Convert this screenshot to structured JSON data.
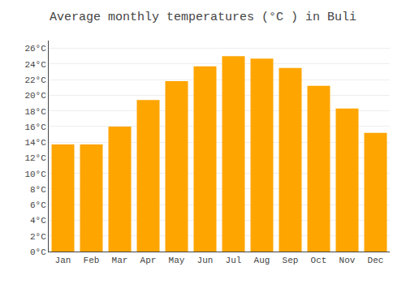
{
  "chart_data": {
    "type": "bar",
    "title": "Average monthly temperatures (°C ) in Buli",
    "categories": [
      "Jan",
      "Feb",
      "Mar",
      "Apr",
      "May",
      "Jun",
      "Jul",
      "Aug",
      "Sep",
      "Oct",
      "Nov",
      "Dec"
    ],
    "values": [
      13.7,
      13.7,
      16.0,
      19.4,
      21.8,
      23.7,
      25.0,
      24.7,
      23.5,
      21.2,
      18.3,
      15.2
    ],
    "color": "#FFA500",
    "ylim": [
      0,
      27
    ],
    "yticks": [
      {
        "value": 0,
        "label": "0°C"
      },
      {
        "value": 2,
        "label": "2°C"
      },
      {
        "value": 4,
        "label": "4°C"
      },
      {
        "value": 6,
        "label": "6°C"
      },
      {
        "value": 8,
        "label": "8°C"
      },
      {
        "value": 10,
        "label": "10°C"
      },
      {
        "value": 12,
        "label": "12°C"
      },
      {
        "value": 14,
        "label": "14°C"
      },
      {
        "value": 16,
        "label": "16°C"
      },
      {
        "value": 18,
        "label": "18°C"
      },
      {
        "value": 20,
        "label": "20°C"
      },
      {
        "value": 22,
        "label": "22°C"
      },
      {
        "value": 24,
        "label": "24°C"
      },
      {
        "value": 26,
        "label": "26°C"
      }
    ],
    "grid": true
  }
}
